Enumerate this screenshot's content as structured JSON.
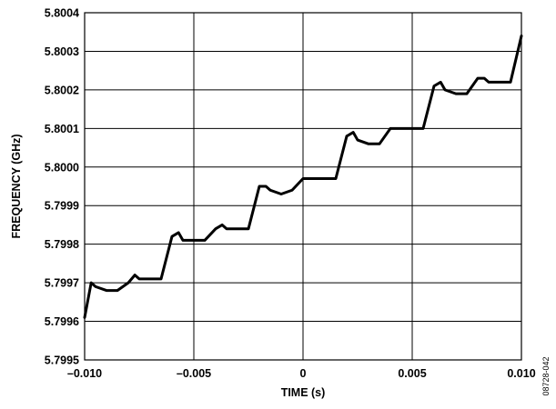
{
  "chart_data": {
    "type": "line",
    "xlabel": "TIME (s)",
    "ylabel": "FREQUENCY (GHz)",
    "xlim": [
      -0.01,
      0.01
    ],
    "ylim": [
      5.7995,
      5.8004
    ],
    "xticks": [
      -0.01,
      -0.005,
      0,
      0.005,
      0.01
    ],
    "xtick_labels": [
      "–0.010",
      "–0.005",
      "0",
      "0.005",
      "0.010"
    ],
    "yticks": [
      5.7995,
      5.7996,
      5.7997,
      5.7998,
      5.7999,
      5.8,
      5.8001,
      5.8002,
      5.8003,
      5.8004
    ],
    "ytick_labels": [
      "5.7995",
      "5.7996",
      "5.7997",
      "5.7998",
      "5.7999",
      "5.8000",
      "5.8001",
      "5.8002",
      "5.8003",
      "5.8004"
    ],
    "grid": true,
    "series": [
      {
        "color": "#000000",
        "x": [
          -0.01,
          -0.0097,
          -0.0095,
          -0.009,
          -0.0085,
          -0.008,
          -0.0077,
          -0.0075,
          -0.007,
          -0.0065,
          -0.006,
          -0.0057,
          -0.0055,
          -0.005,
          -0.0045,
          -0.004,
          -0.0037,
          -0.0035,
          -0.003,
          -0.0025,
          -0.002,
          -0.0017,
          -0.0015,
          -0.001,
          -0.0005,
          0.0,
          0.0003,
          0.0005,
          0.001,
          0.0015,
          0.002,
          0.0023,
          0.0025,
          0.003,
          0.0035,
          0.004,
          0.0043,
          0.0045,
          0.005,
          0.0055,
          0.006,
          0.0063,
          0.0065,
          0.007,
          0.0075,
          0.008,
          0.0083,
          0.0085,
          0.009,
          0.0095,
          0.01
        ],
        "y": [
          5.79961,
          5.7997,
          5.79969,
          5.79968,
          5.79968,
          5.7997,
          5.79972,
          5.79971,
          5.79971,
          5.79971,
          5.79982,
          5.79983,
          5.79981,
          5.79981,
          5.79981,
          5.79984,
          5.79985,
          5.79984,
          5.79984,
          5.79984,
          5.79995,
          5.79995,
          5.79994,
          5.79993,
          5.79994,
          5.79997,
          5.79997,
          5.79997,
          5.79997,
          5.79997,
          5.80008,
          5.80009,
          5.80007,
          5.80006,
          5.80006,
          5.8001,
          5.8001,
          5.8001,
          5.8001,
          5.8001,
          5.80021,
          5.80022,
          5.8002,
          5.80019,
          5.80019,
          5.80023,
          5.80023,
          5.80022,
          5.80022,
          5.80022,
          5.80034
        ]
      }
    ]
  },
  "side_label": "08728-042"
}
